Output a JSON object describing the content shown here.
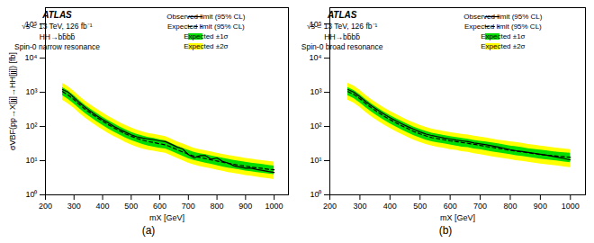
{
  "chart_data": [
    {
      "type": "line",
      "xlabel": "mX [GeV]",
      "ylabel": "σVBF(pp→X[jj]→HH[jj]) [fb]",
      "caption": "(a)",
      "annotations": [
        "ATLAS",
        "√s = 13 TeV, 126 fb⁻¹",
        "HH→bb̄bb̄",
        "Spin-0 narrow resonance"
      ],
      "log": "y",
      "grid": false,
      "legend": "upper right",
      "xlim": [
        200,
        1050
      ],
      "xticks": [
        200,
        300,
        400,
        500,
        600,
        700,
        800,
        900,
        1000
      ],
      "ylim": [
        1,
        300000
      ],
      "yticks": [
        {
          "value": 1,
          "label": "10⁰"
        },
        {
          "value": 10,
          "label": "10¹"
        },
        {
          "value": 100,
          "label": "10²"
        },
        {
          "value": 1000,
          "label": "10³"
        },
        {
          "value": 10000,
          "label": "10⁴"
        },
        {
          "value": 100000,
          "label": "10⁵"
        }
      ],
      "x": [
        260,
        280,
        300,
        320,
        340,
        360,
        380,
        400,
        420,
        440,
        460,
        480,
        500,
        520,
        540,
        560,
        580,
        600,
        620,
        640,
        660,
        680,
        700,
        720,
        740,
        760,
        780,
        800,
        820,
        840,
        860,
        880,
        900,
        920,
        940,
        960,
        980,
        1000
      ],
      "series": [
        {
          "name": "Observed limit (95% CL)",
          "type": "line",
          "color": "black",
          "line_style": "solid",
          "values": [
            1200,
            1000,
            700,
            490,
            360,
            270,
            205,
            160,
            128,
            100,
            82,
            68,
            57,
            50,
            46,
            43,
            41,
            38,
            36,
            30,
            25,
            22,
            15,
            12,
            14,
            14,
            11,
            12,
            9.5,
            8.5,
            7.0,
            6.5,
            6.0,
            6.0,
            5.5,
            5.2,
            4.8,
            4.5
          ]
        },
        {
          "name": "Expected limit (95% CL)",
          "type": "line",
          "color": "black",
          "line_style": "dashed",
          "values": [
            1050,
            820,
            610,
            430,
            315,
            238,
            183,
            143,
            113,
            91,
            74,
            61,
            52,
            45,
            40,
            36,
            34,
            31,
            29,
            25,
            21,
            18,
            15.5,
            13.5,
            12.5,
            11.5,
            10.5,
            9.8,
            9.0,
            8.3,
            7.8,
            7.3,
            6.9,
            6.5,
            6.2,
            5.9,
            5.6,
            5.4
          ]
        },
        {
          "name": "Expected ±1σ",
          "type": "band",
          "color": "#00dd00",
          "lower": [
            800,
            620,
            460,
            325,
            238,
            180,
            138,
            108,
            85,
            69,
            56,
            46,
            39,
            34,
            30,
            27,
            25,
            23,
            22,
            19,
            16,
            13.5,
            11.5,
            10.2,
            9.3,
            8.5,
            7.8,
            7.2,
            6.6,
            6.1,
            5.7,
            5.4,
            5.0,
            4.8,
            4.5,
            4.3,
            4.1,
            3.9
          ],
          "upper": [
            1380,
            1080,
            800,
            565,
            413,
            313,
            241,
            188,
            149,
            120,
            98,
            81,
            68,
            59,
            53,
            48,
            45,
            41,
            38,
            32,
            27,
            23,
            20,
            17.5,
            16,
            15,
            13.8,
            12.8,
            11.8,
            10.9,
            10.2,
            9.6,
            9.0,
            8.5,
            8.1,
            7.7,
            7.3,
            7.0
          ]
        },
        {
          "name": "Expected ±2σ",
          "type": "band",
          "color": "#ffff00",
          "lower": [
            590,
            458,
            340,
            240,
            175,
            133,
            102,
            80,
            63,
            51,
            42,
            34,
            29,
            25,
            22,
            20,
            19,
            17.5,
            16.5,
            14,
            11.8,
            10.0,
            8.5,
            7.5,
            6.8,
            6.3,
            5.8,
            5.3,
            4.9,
            4.5,
            4.2,
            4.0,
            3.7,
            3.5,
            3.3,
            3.1,
            3.0,
            2.8
          ],
          "upper": [
            1850,
            1450,
            1070,
            752,
            551,
            418,
            321,
            251,
            199,
            160,
            130,
            108,
            91,
            79,
            70,
            63,
            59,
            55,
            51,
            43,
            36,
            31,
            27,
            23,
            21,
            19.5,
            18,
            16.5,
            15.3,
            14.2,
            13.3,
            12.5,
            11.7,
            11.1,
            10.5,
            10.0,
            9.5,
            9.1
          ]
        }
      ]
    },
    {
      "type": "line",
      "xlabel": "mX [GeV]",
      "caption": "(b)",
      "annotations": [
        "ATLAS",
        "√s = 13 TeV, 126 fb⁻¹",
        "HH→bb̄bb̄",
        "Spin-0 broad resonance"
      ],
      "log": "y",
      "grid": false,
      "legend": "upper right",
      "xlim": [
        200,
        1050
      ],
      "xticks": [
        200,
        300,
        400,
        500,
        600,
        700,
        800,
        900,
        1000
      ],
      "ylim": [
        1,
        300000
      ],
      "yticks": [
        {
          "value": 1,
          "label": "10⁰"
        },
        {
          "value": 10,
          "label": "10¹"
        },
        {
          "value": 100,
          "label": "10²"
        },
        {
          "value": 1000,
          "label": "10³"
        },
        {
          "value": 10000,
          "label": "10⁴"
        },
        {
          "value": 100000,
          "label": "10⁵"
        }
      ],
      "x": [
        260,
        280,
        300,
        320,
        340,
        360,
        380,
        400,
        420,
        440,
        460,
        480,
        500,
        520,
        540,
        560,
        580,
        600,
        620,
        640,
        660,
        680,
        700,
        720,
        740,
        760,
        780,
        800,
        820,
        840,
        860,
        880,
        900,
        920,
        940,
        960,
        980,
        1000
      ],
      "series": [
        {
          "name": "Observed limit (95% CL)",
          "type": "line",
          "color": "black",
          "line_style": "solid",
          "values": [
            1200,
            1000,
            740,
            530,
            392,
            298,
            230,
            182,
            146,
            119,
            98,
            82,
            69,
            60,
            54,
            50,
            46,
            43,
            40,
            38,
            36,
            33,
            31,
            29,
            27,
            25,
            23,
            21,
            19.5,
            18.5,
            17.5,
            16.5,
            15.5,
            14.5,
            13.5,
            12.5,
            11.5,
            10.5
          ]
        },
        {
          "name": "Expected limit (95% CL)",
          "type": "line",
          "color": "black",
          "line_style": "dashed",
          "values": [
            1050,
            870,
            650,
            462,
            342,
            260,
            201,
            159,
            128,
            104,
            86,
            71,
            61,
            53,
            47,
            44,
            41,
            38,
            36,
            34,
            32,
            30,
            28,
            26,
            24.5,
            23,
            21.5,
            20,
            19,
            18,
            17,
            16,
            15,
            14.5,
            14,
            13.5,
            13,
            12.5
          ]
        },
        {
          "name": "Expected ±1σ",
          "type": "band",
          "color": "#00dd00",
          "lower": [
            800,
            660,
            493,
            351,
            260,
            197,
            153,
            121,
            97,
            79,
            65,
            54,
            46,
            40,
            36,
            33,
            31,
            29,
            27,
            25,
            24,
            22,
            21,
            19.5,
            18,
            17,
            16,
            15,
            14,
            13.3,
            12.5,
            11.8,
            11.2,
            10.7,
            10.2,
            9.7,
            9.2,
            8.8
          ],
          "upper": [
            1380,
            1140,
            853,
            608,
            451,
            343,
            266,
            211,
            170,
            139,
            115,
            96,
            82,
            72,
            64,
            59,
            55,
            51,
            48,
            45,
            42,
            39,
            37,
            35,
            33,
            31,
            29,
            27,
            25.5,
            24,
            22.5,
            21.5,
            20.5,
            19.5,
            18.5,
            17.5,
            17,
            16.5
          ]
        },
        {
          "name": "Expected ±2σ",
          "type": "band",
          "color": "#ffff00",
          "lower": [
            590,
            488,
            363,
            258,
            191,
            145,
            112,
            89,
            71,
            58,
            48,
            40,
            34,
            30,
            27,
            24.5,
            23,
            21,
            20,
            18.5,
            17.5,
            16,
            15,
            14,
            13,
            12.2,
            11.5,
            10.8,
            10.0,
            9.5,
            9.0,
            8.5,
            8.0,
            7.6,
            7.3,
            7.0,
            6.6,
            6.3
          ],
          "upper": [
            1850,
            1530,
            1143,
            813,
            603,
            459,
            355,
            281,
            227,
            185,
            152,
            127,
            109,
            95,
            84,
            78,
            72,
            67,
            63,
            59,
            56,
            52,
            49,
            46,
            43,
            40,
            38,
            36,
            34,
            32,
            30,
            28.5,
            27,
            25.5,
            24,
            23,
            22,
            21
          ]
        }
      ]
    }
  ]
}
